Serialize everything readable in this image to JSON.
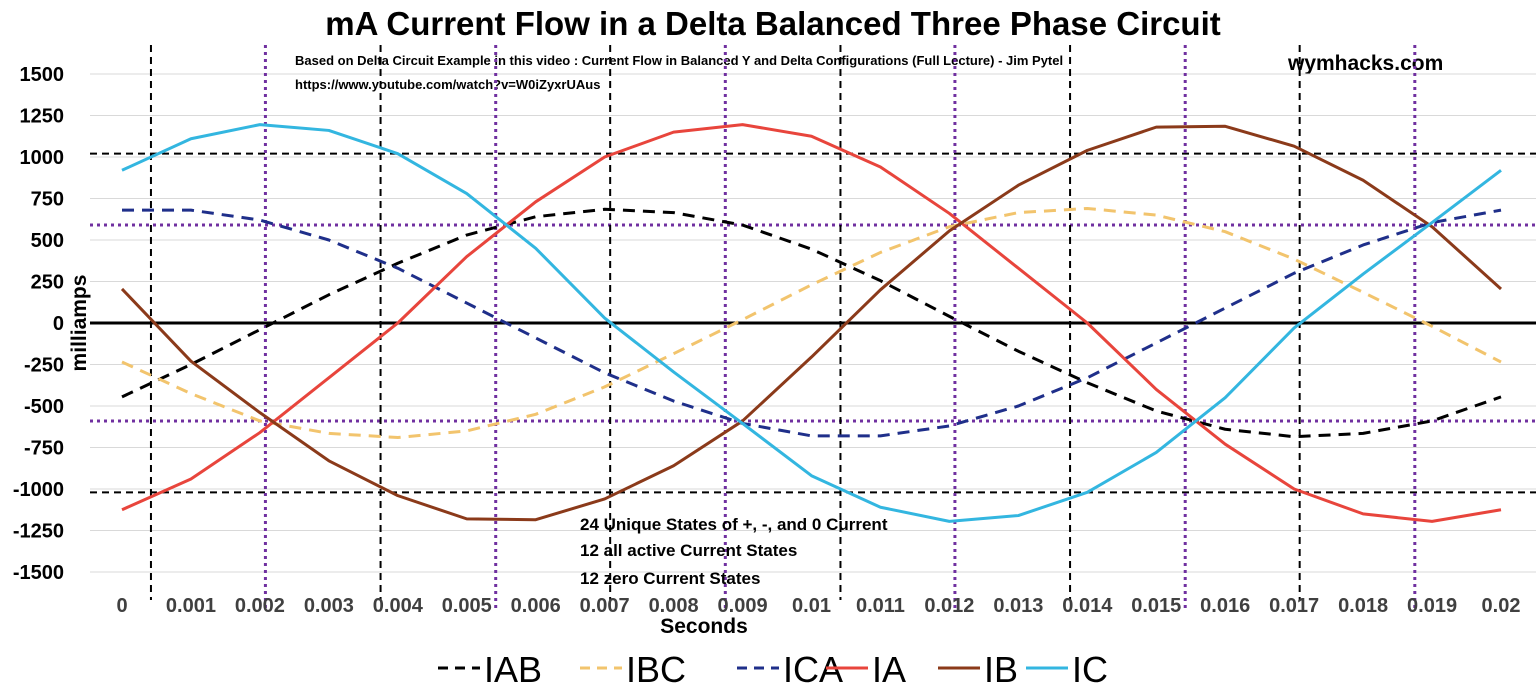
{
  "chart_data": {
    "type": "line",
    "title": "mA Current Flow in a Delta Balanced Three Phase Circuit",
    "source_note_line1": "Based on Delta Circuit Example in this video : Current Flow in Balanced Y and Delta Configurations (Full Lecture) - Jim Pytel",
    "source_note_line2": "https://www.youtube.com/watch?v=W0iZyxrUAus",
    "brand": "wymhacks.com",
    "xlabel": "Seconds",
    "ylabel": "milliamps",
    "x_tick_labels": [
      "0",
      "0.001",
      "0.002",
      "0.003",
      "0.004",
      "0.005",
      "0.006",
      "0.007",
      "0.008",
      "0.009",
      "0.01",
      "0.011",
      "0.012",
      "0.013",
      "0.014",
      "0.015",
      "0.016",
      "0.017",
      "0.018",
      "0.019",
      "0.02"
    ],
    "y_tick_labels": [
      "1500",
      "1250",
      "1000",
      "750",
      "500",
      "250",
      "0",
      "-250",
      "-500",
      "-750",
      "-1000",
      "-1250",
      "-1500"
    ],
    "ylim": [
      -1500,
      1500
    ],
    "xlim": [
      0,
      0.02
    ],
    "grid": true,
    "legend_position": "bottom",
    "annotations": [
      "24  Unique States of +, -, and 0 Current",
      "12 all active Current States",
      "12 zero Current States"
    ],
    "reference_lines": {
      "horizontal_black_dashed": [
        1020,
        -1020
      ],
      "horizontal_purple_dotted": [
        590,
        -590
      ],
      "vertical_black_dashed": [
        0.00042,
        0.00375,
        0.00708,
        0.01042,
        0.01375,
        0.01708
      ],
      "vertical_purple_dotted": [
        0.00208,
        0.00542,
        0.00875,
        0.01208,
        0.01542,
        0.01875
      ]
    },
    "x": [
      0,
      0.001,
      0.002,
      0.003,
      0.004,
      0.005,
      0.006,
      0.007,
      0.008,
      0.009,
      0.01,
      0.011,
      0.012,
      0.013,
      0.014,
      0.015,
      0.016,
      0.017,
      0.018,
      0.019,
      0.02
    ],
    "series": [
      {
        "name": "IAB",
        "color": "#000000",
        "dash": "dashed",
        "values": [
          -445,
          -250,
          -40,
          170,
          360,
          530,
          640,
          685,
          665,
          590,
          445,
          255,
          40,
          -170,
          -360,
          -530,
          -640,
          -685,
          -665,
          -590,
          -445
        ]
      },
      {
        "name": "IBC",
        "color": "#F2C46D",
        "dash": "dashed",
        "values": [
          -235,
          -425,
          -590,
          -665,
          -690,
          -650,
          -550,
          -385,
          -185,
          20,
          230,
          425,
          580,
          665,
          690,
          650,
          550,
          385,
          185,
          -20,
          -235
        ]
      },
      {
        "name": "ICA",
        "color": "#1F2F8A",
        "dash": "dashed",
        "values": [
          680,
          680,
          620,
          500,
          330,
          120,
          -90,
          -300,
          -470,
          -605,
          -680,
          -680,
          -620,
          -500,
          -330,
          -120,
          90,
          300,
          470,
          605,
          680
        ]
      },
      {
        "name": "IA",
        "color": "#E8453C",
        "dash": "solid",
        "values": [
          -1125,
          -940,
          -660,
          -330,
          0,
          400,
          730,
          1000,
          1150,
          1195,
          1125,
          940,
          660,
          330,
          0,
          -400,
          -730,
          -1000,
          -1150,
          -1195,
          -1125
        ]
      },
      {
        "name": "IB",
        "color": "#8B3A1A",
        "dash": "solid",
        "values": [
          205,
          -230,
          -540,
          -830,
          -1040,
          -1180,
          -1185,
          -1060,
          -860,
          -590,
          -205,
          200,
          555,
          830,
          1040,
          1180,
          1185,
          1065,
          860,
          580,
          205
        ]
      },
      {
        "name": "IC",
        "color": "#33B6E0",
        "dash": "solid",
        "values": [
          920,
          1110,
          1195,
          1160,
          1020,
          780,
          450,
          30,
          -295,
          -605,
          -920,
          -1110,
          -1195,
          -1160,
          -1020,
          -780,
          -450,
          -30,
          295,
          605,
          920
        ]
      }
    ]
  }
}
